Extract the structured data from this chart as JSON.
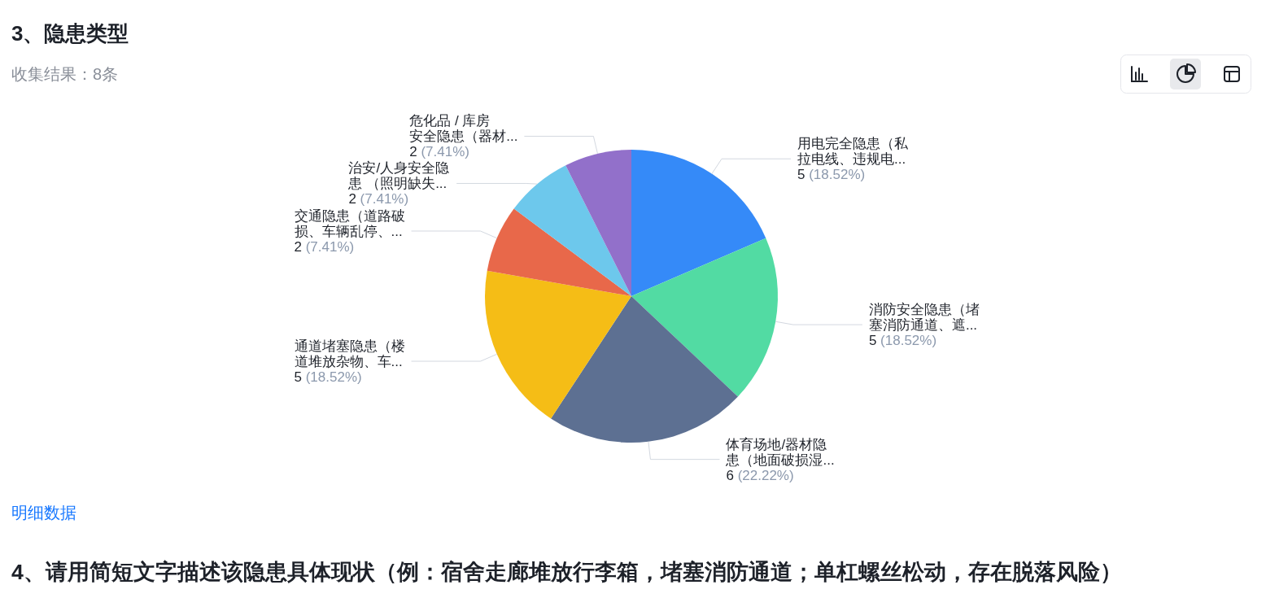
{
  "chart_data": {
    "type": "pie",
    "title": "3、隐患类型",
    "subtitle": "收集结果：8条",
    "categories": [
      "用电完全隐患（私拉电线、违规电...",
      "消防安全隐患（堵塞消防通道、遮...",
      "体育场地/器材隐患（地面破损湿...",
      "通道堵塞隐患（楼道堆放杂物、车...",
      "交通隐患（道路破损、车辆乱停、...",
      "治安/人身安全隐患 （照明缺失...",
      "危化品 / 库房安全隐患（器材..."
    ],
    "values": [
      5,
      5,
      6,
      5,
      2,
      2,
      2
    ],
    "colors": [
      "#358af8",
      "#52dba3",
      "#5d7092",
      "#f5bd16",
      "#e8684a",
      "#6dc8ec",
      "#9270ca"
    ],
    "value_labels": [
      "5 (18.52%)",
      "5 (18.52%)",
      "6 (22.22%)",
      "5 (18.52%)",
      "2 (7.41%)",
      "2 (7.41%)",
      "2 (7.41%)"
    ],
    "annotations": [
      "明细数据",
      "4、请用简短文字描述该隐患具体现状（例：宿舍走廊堆放行李箱，堵塞消防通道；单杠螺丝松动，存在脱落风险）"
    ]
  }
}
